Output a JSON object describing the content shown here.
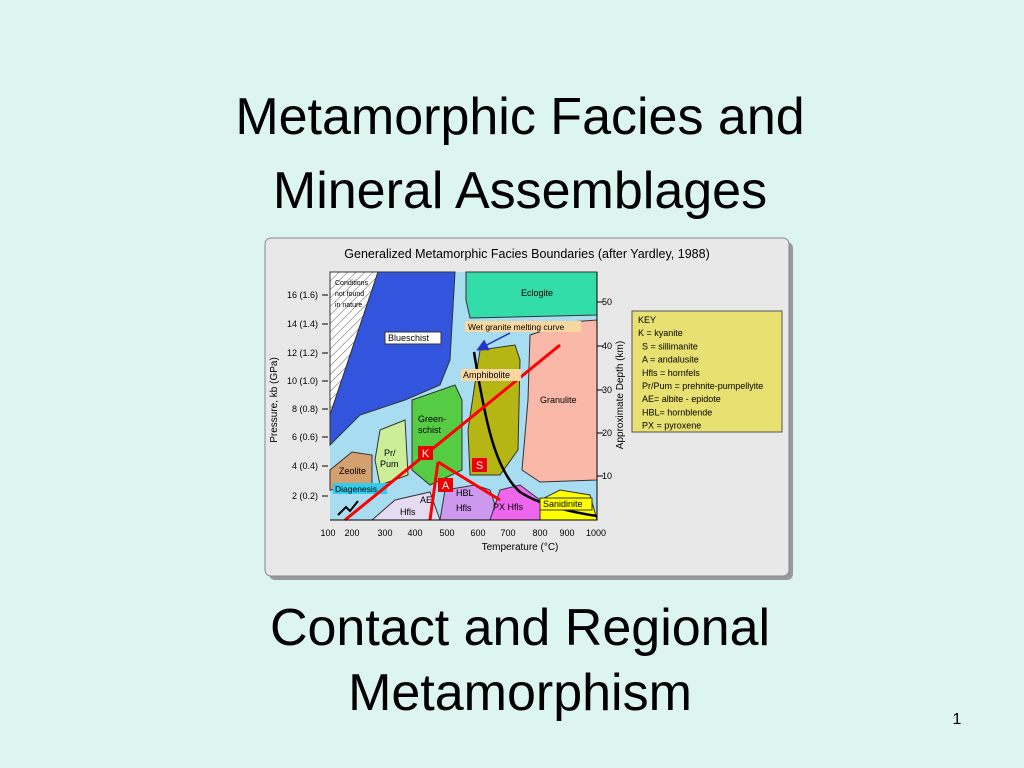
{
  "slide": {
    "title": [
      "Metamorphic Facies and",
      "Mineral Assemblages"
    ],
    "subtitle": [
      "Contact and Regional",
      "Metamorphism"
    ],
    "page_number": "1"
  },
  "figure": {
    "title": "Generalized Metamorphic Facies Boundaries (after Yardley, 1988)",
    "y_axis": {
      "label": "Pressure, kb (GPa)",
      "ticks": [
        "16 (1.6)",
        "14 (1.4)",
        "12 (1.2)",
        "10 (1.0)",
        "8 (0.8)",
        "6 (0.6)",
        "4 (0.4)",
        "2 (0.2)"
      ]
    },
    "x_axis": {
      "label": "Temperature (°C)",
      "ticks": [
        "100",
        "200",
        "300",
        "400",
        "500",
        "600",
        "700",
        "800",
        "900",
        "1000"
      ]
    },
    "depth_axis": {
      "label": "Approximate Depth (km)",
      "ticks": [
        "50",
        "40",
        "30",
        "20",
        "10"
      ]
    },
    "region_labels": [
      "Conditions",
      "not found",
      "in nature",
      "Eclogite",
      "Blueschist",
      "Wet granite melting curve",
      "Amphibolite",
      "Granulite",
      "Green-",
      "schist",
      "Pr/",
      "Pum",
      "Zeolite",
      "Diagenesis",
      "AE",
      "Hfls",
      "HBL",
      "Hfls",
      "PX Hfls",
      "Sanidinite"
    ],
    "minerals": [
      "K",
      "S",
      "A"
    ],
    "key": [
      "KEY",
      "K = kyanite",
      "S = sillimanite",
      "A = andalusite",
      "Hfls = hornfels",
      "Pr/Pum = prehnite-pumpellyite",
      "AE= albite - epidote",
      "HBL= hornblende",
      "PX = pyroxene"
    ]
  }
}
